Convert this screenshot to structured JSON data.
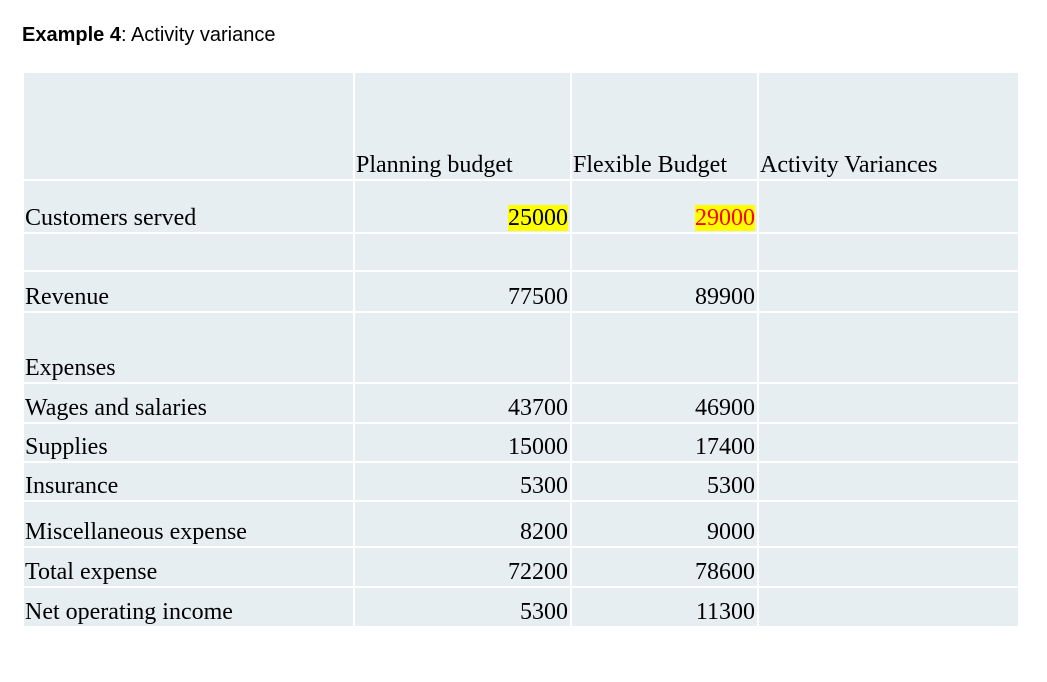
{
  "title": {
    "bold_part": "Example 4",
    "rest": ": Activity variance"
  },
  "columns": [
    "Planning budget",
    "Flexible Budget",
    "Activity Variances"
  ],
  "rows": [
    {
      "label": "Customers served",
      "planning": "25000",
      "flexible": "29000",
      "variance": ""
    },
    {
      "label": "",
      "planning": "",
      "flexible": "",
      "variance": ""
    },
    {
      "label": "Revenue",
      "planning": "77500",
      "flexible": "89900",
      "variance": ""
    },
    {
      "label": "Expenses",
      "planning": "",
      "flexible": "",
      "variance": ""
    },
    {
      "label": "Wages and salaries",
      "planning": "43700",
      "flexible": "46900",
      "variance": ""
    },
    {
      "label": "Supplies",
      "planning": "15000",
      "flexible": "17400",
      "variance": ""
    },
    {
      "label": "Insurance",
      "planning": "5300",
      "flexible": "5300",
      "variance": ""
    },
    {
      "label": "Miscellaneous expense",
      "planning": "8200",
      "flexible": "9000",
      "variance": ""
    },
    {
      "label": "Total expense",
      "planning": "72200",
      "flexible": "78600",
      "variance": ""
    },
    {
      "label": "Net operating income",
      "planning": "5300",
      "flexible": "11300",
      "variance": ""
    }
  ],
  "colors": {
    "cell_bg": "#e6eef2",
    "highlight": "#ffff00",
    "highlight_text": "#ff0000"
  }
}
